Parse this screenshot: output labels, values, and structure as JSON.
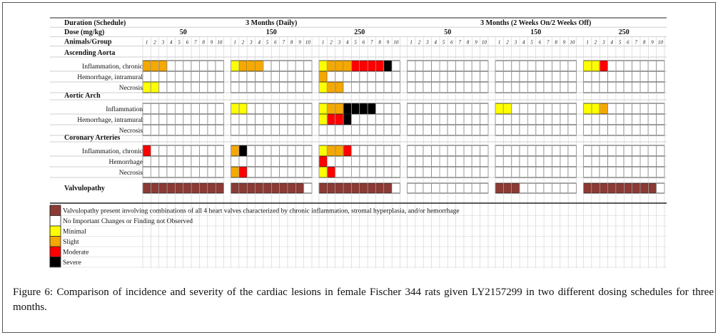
{
  "table": {
    "header": {
      "duration_label": "Duration (Schedule)",
      "dose_label": "Dose (mg/kg)",
      "animals_label": "Animals/Group",
      "schedules": [
        "3 Months (Daily)",
        "3 Months (2 Weeks On/2 Weeks Off)"
      ],
      "doses": [
        "50",
        "150",
        "250",
        "50",
        "150",
        "250"
      ],
      "animal_numbers": [
        "1",
        "2",
        "3",
        "4",
        "5",
        "6",
        "7",
        "8",
        "9",
        "10"
      ]
    },
    "sections": [
      {
        "title": "Ascending Aorta",
        "rows": [
          {
            "label": "Inflammation, chronic",
            "groups": [
              [
                2,
                2,
                2,
                0,
                0,
                0,
                0,
                0,
                0,
                0
              ],
              [
                1,
                2,
                2,
                2,
                0,
                0,
                0,
                0,
                0,
                0
              ],
              [
                1,
                2,
                2,
                2,
                3,
                3,
                3,
                3,
                4,
                0
              ],
              [
                0,
                0,
                0,
                0,
                0,
                0,
                0,
                0,
                0,
                0
              ],
              [
                0,
                0,
                0,
                0,
                0,
                0,
                0,
                0,
                0,
                0
              ],
              [
                1,
                1,
                3,
                0,
                0,
                0,
                0,
                0,
                0,
                0
              ]
            ]
          },
          {
            "label": "Hemorrhage, intramural",
            "groups": [
              [
                0,
                0,
                0,
                0,
                0,
                0,
                0,
                0,
                0,
                0
              ],
              [
                0,
                0,
                0,
                0,
                0,
                0,
                0,
                0,
                0,
                0
              ],
              [
                2,
                0,
                0,
                0,
                0,
                0,
                0,
                0,
                0,
                0
              ],
              [
                0,
                0,
                0,
                0,
                0,
                0,
                0,
                0,
                0,
                0
              ],
              [
                0,
                0,
                0,
                0,
                0,
                0,
                0,
                0,
                0,
                0
              ],
              [
                0,
                0,
                0,
                0,
                0,
                0,
                0,
                0,
                0,
                0
              ]
            ]
          },
          {
            "label": "Necrosis",
            "groups": [
              [
                1,
                1,
                0,
                0,
                0,
                0,
                0,
                0,
                0,
                0
              ],
              [
                0,
                0,
                0,
                0,
                0,
                0,
                0,
                0,
                0,
                0
              ],
              [
                1,
                2,
                2,
                0,
                0,
                0,
                0,
                0,
                0,
                0
              ],
              [
                0,
                0,
                0,
                0,
                0,
                0,
                0,
                0,
                0,
                0
              ],
              [
                0,
                0,
                0,
                0,
                0,
                0,
                0,
                0,
                0,
                0
              ],
              [
                0,
                0,
                0,
                0,
                0,
                0,
                0,
                0,
                0,
                0
              ]
            ]
          }
        ]
      },
      {
        "title": "Aortic Arch",
        "rows": [
          {
            "label": "Inflammation",
            "groups": [
              [
                0,
                0,
                0,
                0,
                0,
                0,
                0,
                0,
                0,
                0
              ],
              [
                1,
                1,
                0,
                0,
                0,
                0,
                0,
                0,
                0,
                0
              ],
              [
                1,
                2,
                2,
                4,
                4,
                4,
                4,
                0,
                0,
                0
              ],
              [
                0,
                0,
                0,
                0,
                0,
                0,
                0,
                0,
                0,
                0
              ],
              [
                1,
                1,
                0,
                0,
                0,
                0,
                0,
                0,
                0,
                0
              ],
              [
                1,
                1,
                2,
                0,
                0,
                0,
                0,
                0,
                0,
                0
              ]
            ]
          },
          {
            "label": "Hemorrhage, intramural",
            "groups": [
              [
                0,
                0,
                0,
                0,
                0,
                0,
                0,
                0,
                0,
                0
              ],
              [
                0,
                0,
                0,
                0,
                0,
                0,
                0,
                0,
                0,
                0
              ],
              [
                1,
                3,
                3,
                4,
                0,
                0,
                0,
                0,
                0,
                0
              ],
              [
                0,
                0,
                0,
                0,
                0,
                0,
                0,
                0,
                0,
                0
              ],
              [
                0,
                0,
                0,
                0,
                0,
                0,
                0,
                0,
                0,
                0
              ],
              [
                0,
                0,
                0,
                0,
                0,
                0,
                0,
                0,
                0,
                0
              ]
            ]
          },
          {
            "label": "Necrosis",
            "groups": [
              [
                0,
                0,
                0,
                0,
                0,
                0,
                0,
                0,
                0,
                0
              ],
              [
                0,
                0,
                0,
                0,
                0,
                0,
                0,
                0,
                0,
                0
              ],
              [
                0,
                0,
                0,
                0,
                0,
                0,
                0,
                0,
                0,
                0
              ],
              [
                0,
                0,
                0,
                0,
                0,
                0,
                0,
                0,
                0,
                0
              ],
              [
                0,
                0,
                0,
                0,
                0,
                0,
                0,
                0,
                0,
                0
              ],
              [
                0,
                0,
                0,
                0,
                0,
                0,
                0,
                0,
                0,
                0
              ]
            ]
          }
        ]
      },
      {
        "title": "Coronary Arteries",
        "rows": [
          {
            "label": "Inflammation, chronic",
            "groups": [
              [
                3,
                0,
                0,
                0,
                0,
                0,
                0,
                0,
                0,
                0
              ],
              [
                2,
                4,
                0,
                0,
                0,
                0,
                0,
                0,
                0,
                0
              ],
              [
                1,
                2,
                2,
                3,
                0,
                0,
                0,
                0,
                0,
                0
              ],
              [
                0,
                0,
                0,
                0,
                0,
                0,
                0,
                0,
                0,
                0
              ],
              [
                0,
                0,
                0,
                0,
                0,
                0,
                0,
                0,
                0,
                0
              ],
              [
                0,
                0,
                0,
                0,
                0,
                0,
                0,
                0,
                0,
                0
              ]
            ]
          },
          {
            "label": "Hemorrhage",
            "groups": [
              [
                0,
                0,
                0,
                0,
                0,
                0,
                0,
                0,
                0,
                0
              ],
              [
                0,
                0,
                0,
                0,
                0,
                0,
                0,
                0,
                0,
                0
              ],
              [
                3,
                0,
                0,
                0,
                0,
                0,
                0,
                0,
                0,
                0
              ],
              [
                0,
                0,
                0,
                0,
                0,
                0,
                0,
                0,
                0,
                0
              ],
              [
                0,
                0,
                0,
                0,
                0,
                0,
                0,
                0,
                0,
                0
              ],
              [
                0,
                0,
                0,
                0,
                0,
                0,
                0,
                0,
                0,
                0
              ]
            ]
          },
          {
            "label": "Necrosis",
            "groups": [
              [
                0,
                0,
                0,
                0,
                0,
                0,
                0,
                0,
                0,
                0
              ],
              [
                2,
                3,
                0,
                0,
                0,
                0,
                0,
                0,
                0,
                0
              ],
              [
                1,
                3,
                0,
                0,
                0,
                0,
                0,
                0,
                0,
                0
              ],
              [
                0,
                0,
                0,
                0,
                0,
                0,
                0,
                0,
                0,
                0
              ],
              [
                0,
                0,
                0,
                0,
                0,
                0,
                0,
                0,
                0,
                0
              ],
              [
                0,
                0,
                0,
                0,
                0,
                0,
                0,
                0,
                0,
                0
              ]
            ]
          }
        ]
      }
    ],
    "valvulopathy": {
      "label": "Valvulopathy",
      "counts": [
        10,
        9,
        9,
        0,
        3,
        9
      ]
    },
    "legend": [
      {
        "key": "valvulopathy",
        "color": "#8b3a34",
        "text": "Valvulopathy present involving combinations of all 4 heart valves characterized by chronic inflammation, stromal hyperplasia, and/or hemorrhage"
      },
      {
        "key": "none",
        "color": "#ffffff",
        "text": "No Important Changes or Finding not Observed"
      },
      {
        "key": "minimal",
        "color": "#ffff00",
        "text": "Minimal"
      },
      {
        "key": "slight",
        "color": "#f5a800",
        "text": "Slight"
      },
      {
        "key": "moderate",
        "color": "#ff0000",
        "text": "Moderate"
      },
      {
        "key": "severe",
        "color": "#000000",
        "text": "Severe"
      }
    ],
    "severity_colors": [
      "#ffffff",
      "#ffff00",
      "#f5a800",
      "#ff0000",
      "#000000"
    ],
    "valvulopathy_color": "#8b3a34"
  },
  "caption": "Figure 6: Comparison of incidence and severity of the cardiac lesions in female Fischer 344 rats given LY2157299 in two different dosing schedules for three months."
}
